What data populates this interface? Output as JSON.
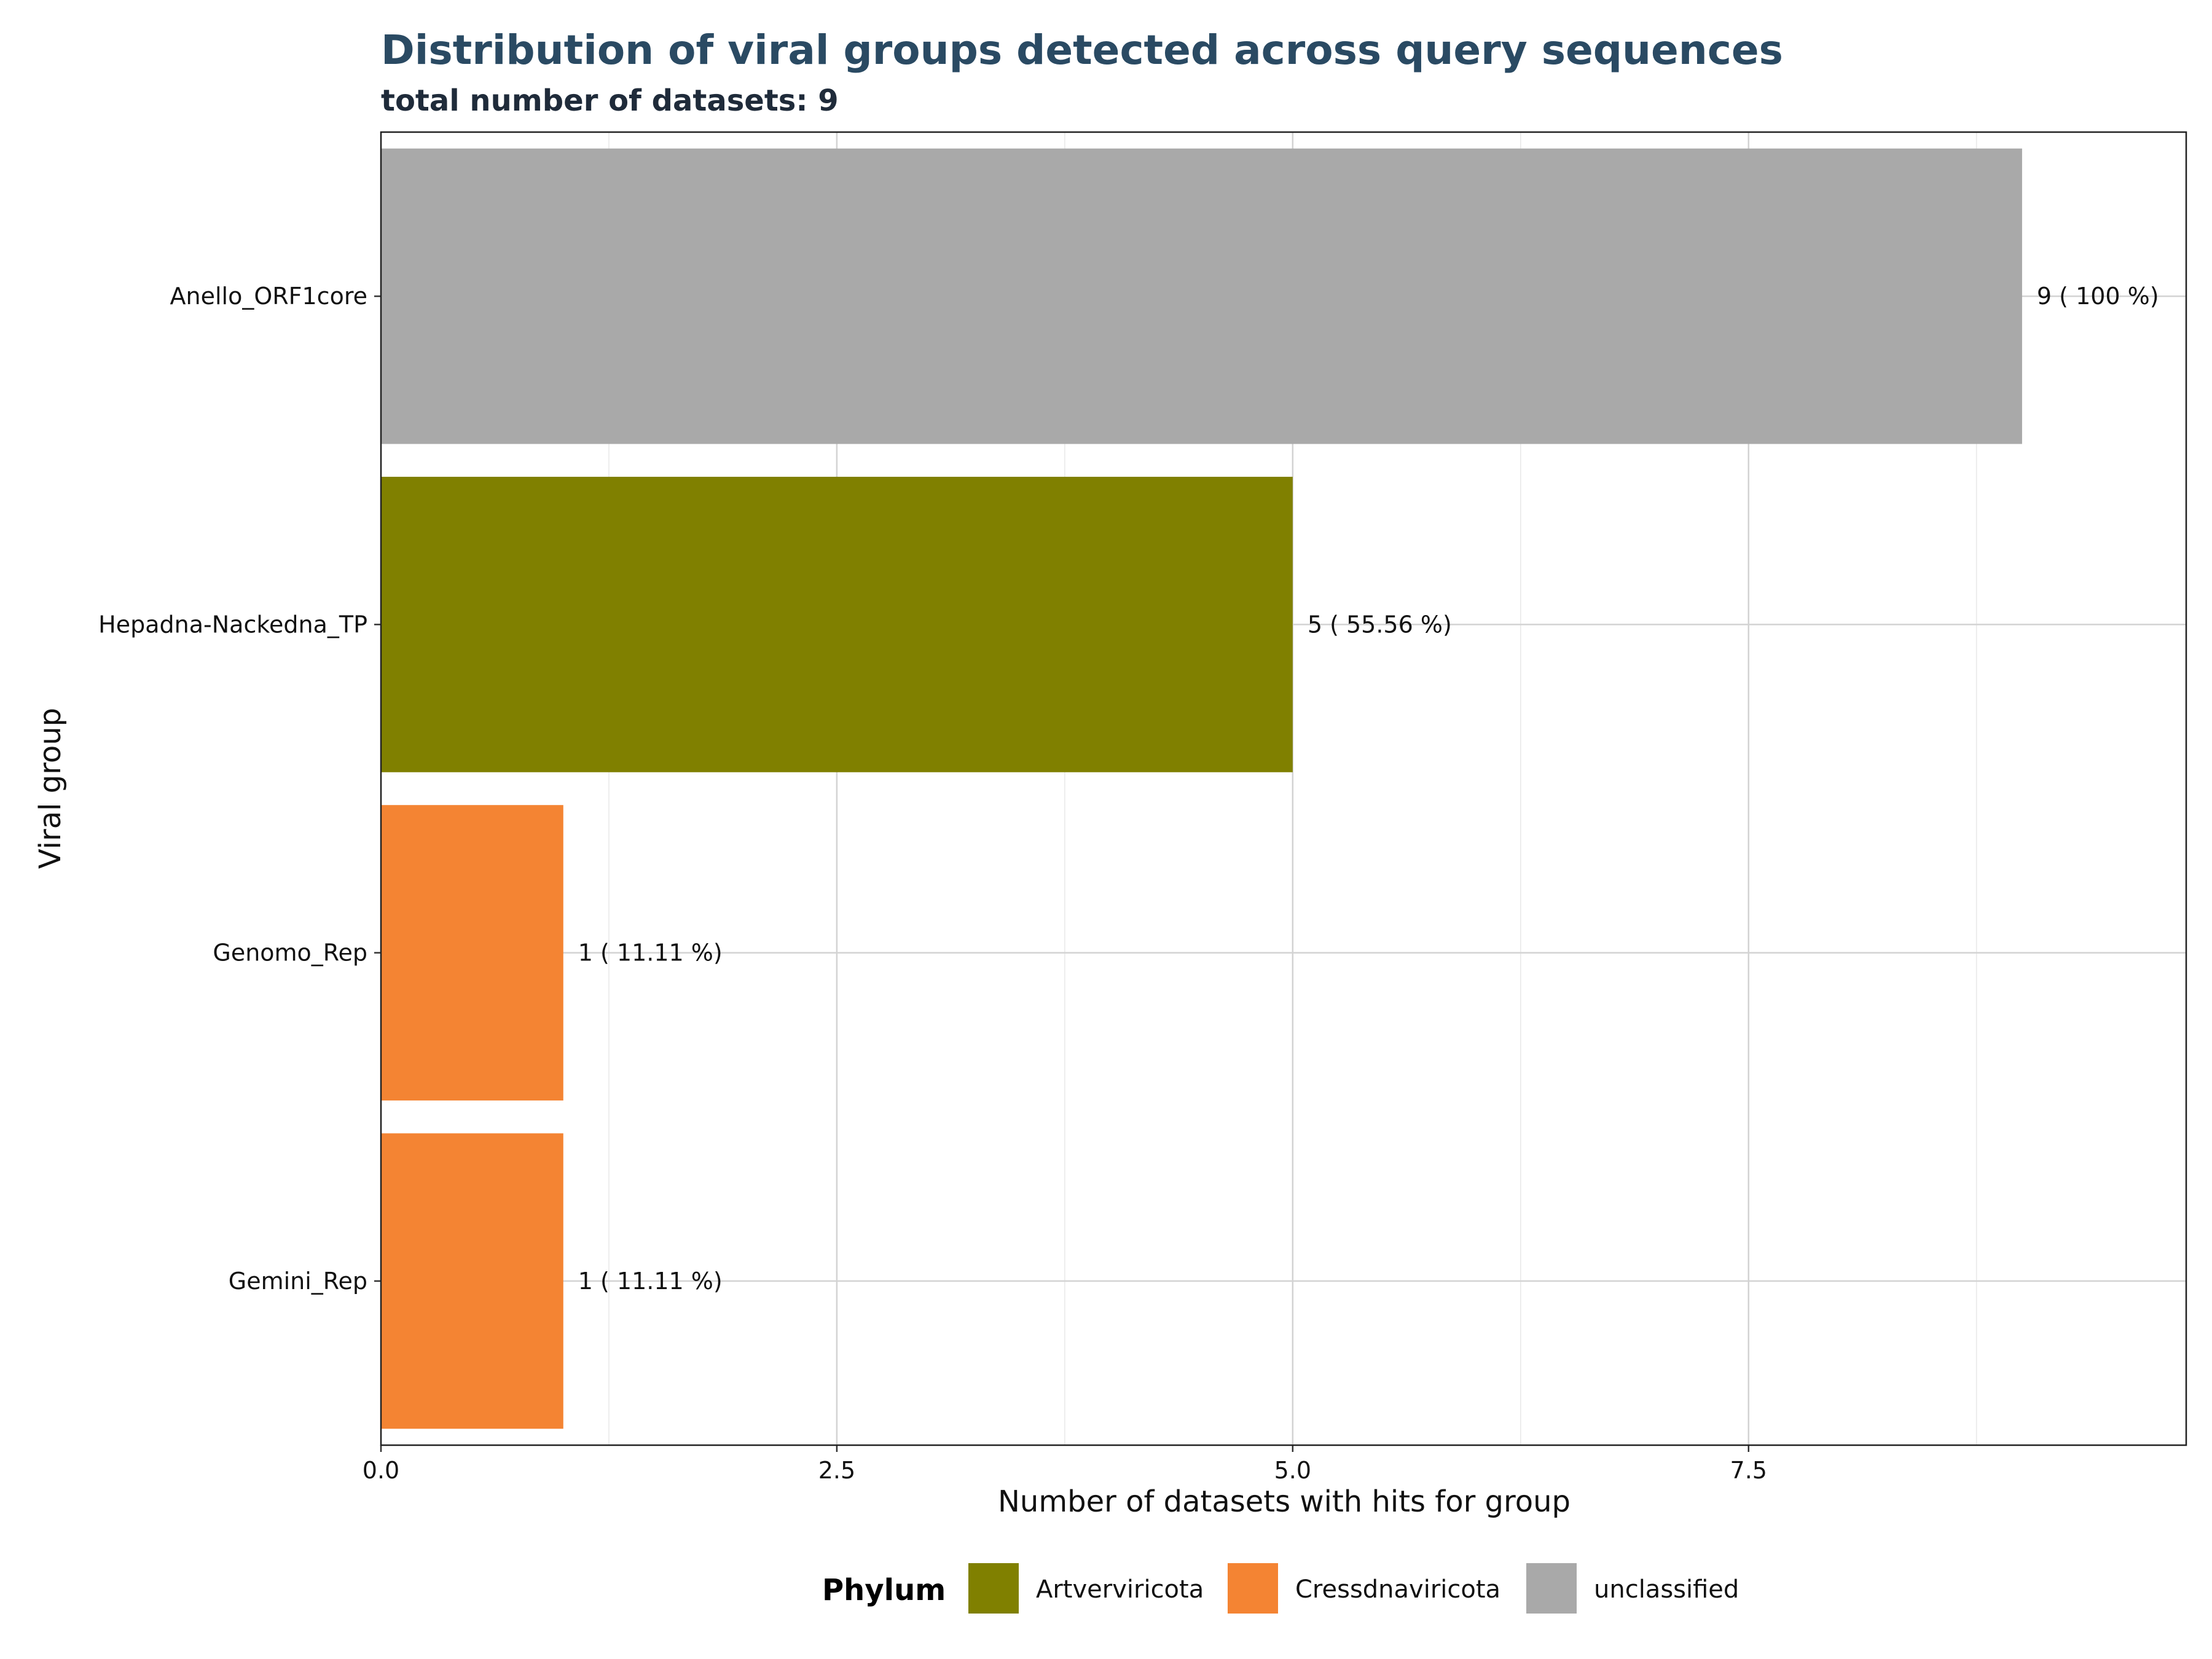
{
  "chart_data": {
    "type": "bar",
    "orientation": "horizontal",
    "title": "Distribution of viral groups detected across query sequences",
    "subtitle": "total number of datasets: 9",
    "xlabel": "Number of datasets with hits for group",
    "ylabel": "Viral group",
    "xlim": [
      0,
      9.9
    ],
    "xticks": [
      0,
      2.5,
      5,
      7.5
    ],
    "xtick_labels": [
      "0.0",
      "2.5",
      "5.0",
      "7.5"
    ],
    "grid": true,
    "categories": [
      "Anello_ORF1core",
      "Hepadna-Nackedna_TP",
      "Genomo_Rep",
      "Gemini_Rep"
    ],
    "values": [
      9,
      5,
      1,
      1
    ],
    "data_labels": [
      "9  ( 100 %)",
      "5  ( 55.56 %)",
      "1  ( 11.11 %)",
      "1  ( 11.11 %)"
    ],
    "bar_phylum": [
      "unclassified",
      "Artverviricota",
      "Cressdnaviricota",
      "Cressdnaviricota"
    ],
    "legend": {
      "title": "Phylum",
      "position": "bottom",
      "entries": [
        {
          "label": "Artverviricota",
          "color": "#808000"
        },
        {
          "label": "Cressdnaviricota",
          "color": "#F48433"
        },
        {
          "label": "unclassified",
          "color": "#A9A9A9"
        }
      ]
    }
  }
}
